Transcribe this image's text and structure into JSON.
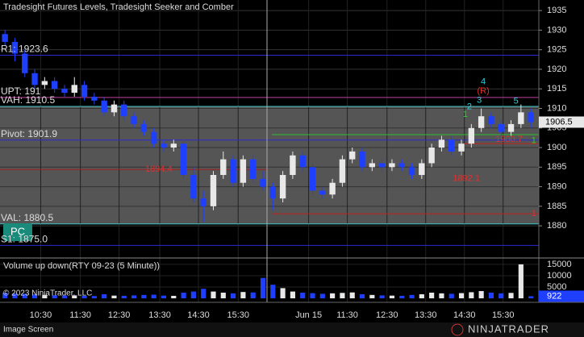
{
  "chart_data": {
    "type": "candlestick",
    "title": "Tradesight Futures Levels, Tradesight Seeker and Comber",
    "up_color": "#e8e8e8",
    "down_color": "#1f3fff",
    "xlim": [
      -0.5,
      53.8
    ],
    "ylim": [
      1872.2,
      1937.7
    ],
    "yticks": [
      1880,
      1885,
      1890,
      1895,
      1900,
      1905,
      1910,
      1915,
      1920,
      1925,
      1930,
      1935
    ],
    "xticks": [
      {
        "value": 3.6,
        "label": "10:30"
      },
      {
        "value": 7.6,
        "label": "11:30"
      },
      {
        "value": 11.5,
        "label": "12:30"
      },
      {
        "value": 15.6,
        "label": "13:30"
      },
      {
        "value": 19.5,
        "label": "14:30"
      },
      {
        "value": 23.5,
        "label": "15:30"
      },
      {
        "value": 30.6,
        "label": "Jun 15"
      },
      {
        "value": 34.5,
        "label": "11:30"
      },
      {
        "value": 38.5,
        "label": "12:30"
      },
      {
        "value": 42.4,
        "label": "13:30"
      },
      {
        "value": 46.3,
        "label": "14:30"
      },
      {
        "value": 50.2,
        "label": "15:30"
      }
    ],
    "candles": [
      [
        1929,
        1930,
        1926,
        1927
      ],
      [
        1927,
        1928,
        1922,
        1924
      ],
      [
        1924,
        1925,
        1918,
        1919
      ],
      [
        1919,
        1920,
        1915,
        1916
      ],
      [
        1916,
        1918,
        1915,
        1917
      ],
      [
        1917,
        1918,
        1914,
        1915
      ],
      [
        1915,
        1916,
        1913,
        1914
      ],
      [
        1914,
        1918,
        1913,
        1916
      ],
      [
        1916,
        1917,
        1912,
        1913
      ],
      [
        1913,
        1914,
        1911,
        1912
      ],
      [
        1912,
        1913,
        1908,
        1909
      ],
      [
        1909,
        1912,
        1908,
        1911
      ],
      [
        1911,
        1912,
        1907,
        1908
      ],
      [
        1908,
        1909,
        1905,
        1906
      ],
      [
        1906,
        1907,
        1903,
        1904
      ],
      [
        1904,
        1905,
        1900,
        1901
      ],
      [
        1901,
        1902,
        1899,
        1900
      ],
      [
        1900,
        1902,
        1899,
        1901
      ],
      [
        1901,
        1902,
        1892,
        1893
      ],
      [
        1893,
        1895,
        1886,
        1887
      ],
      [
        1887,
        1889,
        1881,
        1885
      ],
      [
        1885,
        1894,
        1884,
        1893
      ],
      [
        1893,
        1899,
        1892,
        1897
      ],
      [
        1897,
        1898,
        1890,
        1891
      ],
      [
        1891,
        1898,
        1890,
        1897
      ],
      [
        1897,
        1898,
        1891,
        1892
      ],
      [
        1892,
        1894,
        1889,
        1890
      ],
      [
        1890,
        1891,
        1884,
        1887
      ],
      [
        1887,
        1894,
        1886,
        1893
      ],
      [
        1893,
        1899,
        1892,
        1898
      ],
      [
        1898,
        1899,
        1894,
        1895
      ],
      [
        1895,
        1896,
        1888,
        1889
      ],
      [
        1889,
        1890,
        1887,
        1888
      ],
      [
        1888,
        1892,
        1887,
        1891
      ],
      [
        1891,
        1898,
        1890,
        1897
      ],
      [
        1897,
        1900,
        1896,
        1899
      ],
      [
        1899,
        1900,
        1894,
        1895
      ],
      [
        1895,
        1897,
        1894,
        1896
      ],
      [
        1896,
        1897,
        1894,
        1895
      ],
      [
        1895,
        1897,
        1894,
        1896
      ],
      [
        1896,
        1897,
        1894,
        1895
      ],
      [
        1895,
        1896,
        1892,
        1893
      ],
      [
        1893,
        1897,
        1892,
        1896
      ],
      [
        1896,
        1901,
        1895,
        1900
      ],
      [
        1900,
        1903,
        1899,
        1902
      ],
      [
        1902,
        1903,
        1898,
        1899
      ],
      [
        1899,
        1902,
        1898,
        1901
      ],
      [
        1901,
        1906,
        1900,
        1905
      ],
      [
        1905,
        1910,
        1904,
        1908
      ],
      [
        1908,
        1909,
        1905,
        1906
      ],
      [
        1906,
        1907,
        1903,
        1904
      ],
      [
        1904,
        1907,
        1903,
        1906
      ],
      [
        1906,
        1911,
        1905,
        1909
      ],
      [
        1909,
        1910,
        1905,
        1906.5
      ]
    ],
    "levels": [
      {
        "label": "R1: 1923.6",
        "value": 1923.6,
        "color": "#2a2ad0"
      },
      {
        "label": "UPT: 191",
        "value": 1912.8,
        "color": "#c040a0"
      },
      {
        "label": "VAH: 1910.5",
        "value": 1910.5,
        "color": "#40c8c8"
      },
      {
        "label": "Pivot: 1901.9",
        "value": 1901.9,
        "color": "#2a2ad0"
      },
      {
        "label": "VAL: 1880.5",
        "value": 1880.5,
        "color": "#40c8c8"
      },
      {
        "label": "S1: 1875.0",
        "value": 1875.0,
        "color": "#2a2ad0"
      }
    ],
    "segments": [
      {
        "value": 1894.4,
        "from": -0.5,
        "to": 26.5,
        "color": "#a02020"
      },
      {
        "value": 1903.3,
        "from": 26.9,
        "to": 53.8,
        "color": "#30c030"
      },
      {
        "value": 1901,
        "from": 46.3,
        "to": 53.8,
        "color": "#c02020"
      },
      {
        "value": 1883.1,
        "from": 26.9,
        "to": 53.8,
        "color": "#c02020"
      }
    ],
    "annotations": [
      {
        "text": "1894.4",
        "x": 15.5,
        "y": 1894.4,
        "color": "#e03030"
      },
      {
        "text": "1892.1",
        "x": 46.5,
        "y": 1892.1,
        "color": "#e03030"
      },
      {
        "text": "1900.7",
        "x": 50.8,
        "y": 1902,
        "color": "#e03030"
      },
      {
        "text": "1",
        "x": 53.3,
        "y": 1883.1,
        "color": "#e03030"
      },
      {
        "text": "1",
        "x": 53.3,
        "y": 1901.7,
        "color": "#30d030"
      },
      {
        "text": "4",
        "x": 48.2,
        "y": 1916.8,
        "color": "#30d0e0"
      },
      {
        "text": "(R)",
        "x": 48.2,
        "y": 1914.4,
        "color": "#e03030"
      },
      {
        "text": "2",
        "x": 46.8,
        "y": 1910.4,
        "color": "#30d0e0"
      },
      {
        "text": "3",
        "x": 47.8,
        "y": 1912,
        "color": "#30d0e0"
      },
      {
        "text": "5",
        "x": 51.5,
        "y": 1911.8,
        "color": "#30d0e0"
      },
      {
        "text": "1",
        "x": 46.4,
        "y": 1908.4,
        "color": "#30d030"
      }
    ],
    "last_price": {
      "value": 1906.5,
      "label": "1906.5"
    },
    "volume": {
      "title": "Volume up down(RTY 09-23 (5 Minute))",
      "ylim": [
        -700,
        17100
      ],
      "yticks": [
        5000,
        10000,
        15000
      ],
      "values": [
        2500,
        2200,
        2000,
        1800,
        1500,
        1400,
        1200,
        1300,
        1100,
        1000,
        1800,
        1200,
        1100,
        1300,
        1500,
        1600,
        1200,
        1100,
        2500,
        3000,
        4200,
        3000,
        2500,
        2200,
        2800,
        2600,
        9000,
        6000,
        4500,
        3000,
        2500,
        2300,
        2000,
        2200,
        2400,
        2600,
        1800,
        1500,
        1300,
        1200,
        1100,
        1500,
        1800,
        2500,
        2200,
        2000,
        2300,
        2700,
        3200,
        2500,
        2200,
        2400,
        15000,
        922
      ],
      "last": 922
    },
    "copyright": "© 2023 NinjaTrader, LLC",
    "button": "PC",
    "footer": "Image Screen",
    "logo": "NINJATRADER"
  }
}
